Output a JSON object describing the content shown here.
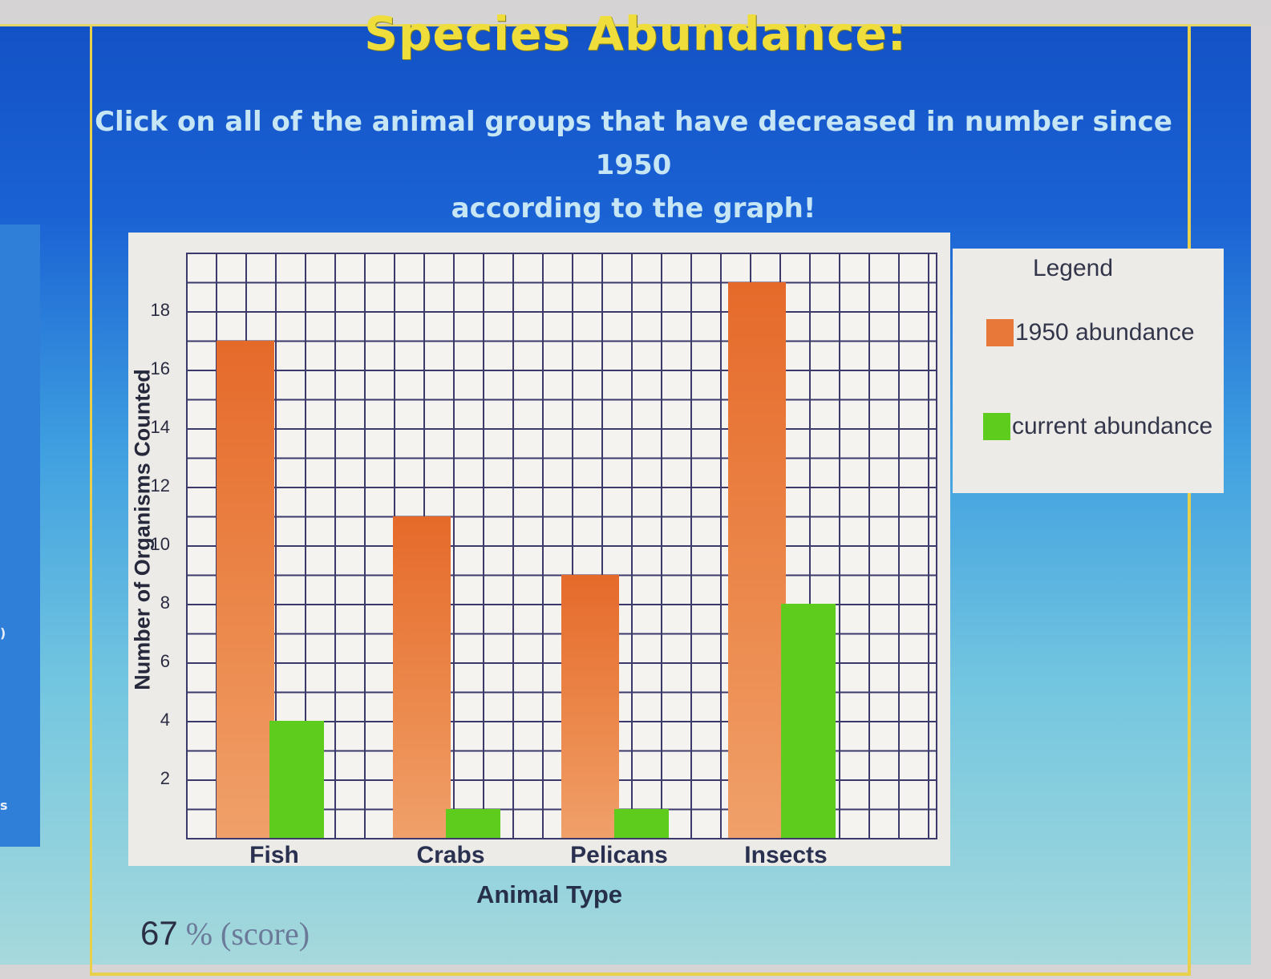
{
  "page": {
    "title": "Species Abundance:",
    "instructions_line1": "Click on all of the animal groups that have decreased in number since 1950",
    "instructions_line2": "according to the graph!",
    "score_value": "67",
    "score_unit": "% (score)"
  },
  "colors": {
    "background_top": "#1352c6",
    "background_bottom": "#a6d9dc",
    "title": "#eedd3a",
    "instructions": "#c6e6f5",
    "frame_border": "#e9cf4a",
    "series_1950": "#e8773a",
    "series_current": "#5ecc1c",
    "grid_lines": "#3b3a6a"
  },
  "legend": {
    "title": "Legend",
    "items": [
      {
        "label": "1950 abundance",
        "color": "#e8773a"
      },
      {
        "label": "current abundance",
        "color": "#5ecc1c"
      }
    ]
  },
  "chart_data": {
    "type": "bar",
    "title": "Species Abundance:",
    "xlabel": "Animal Type",
    "ylabel": "Number of Organisms Counted",
    "categories": [
      "Fish",
      "Crabs",
      "Pelicans",
      "Insects"
    ],
    "series": [
      {
        "name": "1950 abundance",
        "values": [
          17,
          11,
          9,
          19
        ],
        "color": "#e8773a"
      },
      {
        "name": "current abundance",
        "values": [
          4,
          1,
          1,
          8
        ],
        "color": "#5ecc1c"
      }
    ],
    "yticks": [
      2,
      4,
      6,
      8,
      10,
      12,
      14,
      16,
      18
    ],
    "ylim": [
      0,
      20
    ],
    "grid": true,
    "legend_position": "right"
  }
}
